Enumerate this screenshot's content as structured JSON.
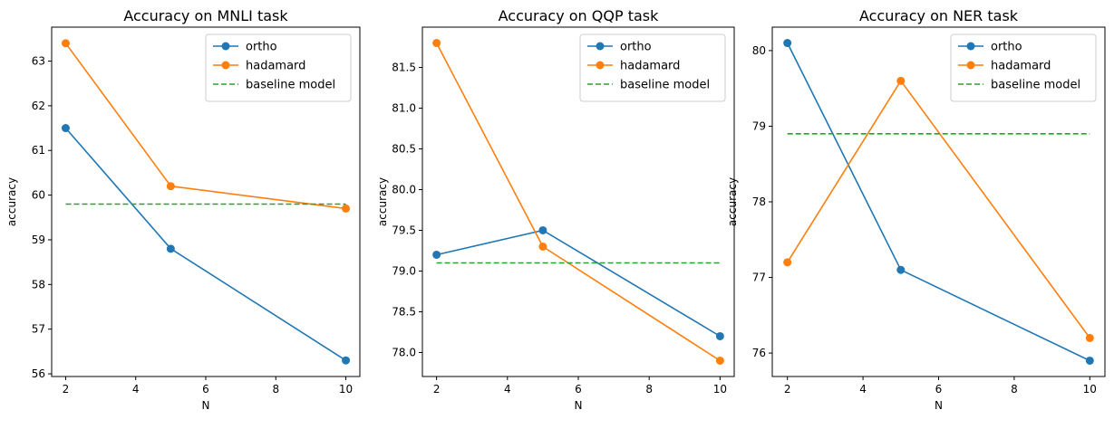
{
  "chart_data": [
    {
      "type": "line",
      "title": "Accuracy on MNLI task",
      "xlabel": "N",
      "ylabel": "accuracy",
      "x": [
        2,
        5,
        10
      ],
      "xticks": [
        2,
        4,
        6,
        8,
        10
      ],
      "yticks": [
        56,
        57,
        58,
        59,
        60,
        61,
        62,
        63
      ],
      "xlim": [
        1.6,
        10.4
      ],
      "ylim": [
        55.94,
        63.76
      ],
      "series": [
        {
          "name": "ortho",
          "values": [
            61.5,
            58.8,
            56.3
          ],
          "color": "#1f77b4",
          "style": "solid",
          "marker": "circle"
        },
        {
          "name": "hadamard",
          "values": [
            63.4,
            60.2,
            59.7
          ],
          "color": "#ff7f0e",
          "style": "solid",
          "marker": "circle"
        },
        {
          "name": "baseline model",
          "values": [
            59.8,
            59.8,
            59.8
          ],
          "color": "#2ca02c",
          "style": "dashed",
          "marker": "none"
        }
      ],
      "legend": "top-right",
      "grid": false
    },
    {
      "type": "line",
      "title": "Accuracy on QQP task",
      "xlabel": "N",
      "ylabel": "accuracy",
      "x": [
        2,
        5,
        10
      ],
      "xticks": [
        2,
        4,
        6,
        8,
        10
      ],
      "yticks": [
        "78.0",
        "78.5",
        "79.0",
        "79.5",
        "80.0",
        "80.5",
        "81.0",
        "81.5"
      ],
      "xlim": [
        1.6,
        10.4
      ],
      "ylim": [
        77.705,
        81.995
      ],
      "series": [
        {
          "name": "ortho",
          "values": [
            79.2,
            79.5,
            78.2
          ],
          "color": "#1f77b4",
          "style": "solid",
          "marker": "circle"
        },
        {
          "name": "hadamard",
          "values": [
            81.8,
            79.3,
            77.9
          ],
          "color": "#ff7f0e",
          "style": "solid",
          "marker": "circle"
        },
        {
          "name": "baseline model",
          "values": [
            79.1,
            79.1,
            79.1
          ],
          "color": "#2ca02c",
          "style": "dashed",
          "marker": "none"
        }
      ],
      "legend": "top-right",
      "grid": false
    },
    {
      "type": "line",
      "title": "Accuracy on NER task",
      "xlabel": "N",
      "ylabel": "accuracy",
      "x": [
        2,
        5,
        10
      ],
      "xticks": [
        2,
        4,
        6,
        8,
        10
      ],
      "yticks": [
        76,
        77,
        78,
        79,
        80
      ],
      "xlim": [
        1.6,
        10.4
      ],
      "ylim": [
        75.69,
        80.31
      ],
      "series": [
        {
          "name": "ortho",
          "values": [
            80.1,
            77.1,
            75.9
          ],
          "color": "#1f77b4",
          "style": "solid",
          "marker": "circle"
        },
        {
          "name": "hadamard",
          "values": [
            77.2,
            79.6,
            76.2
          ],
          "color": "#ff7f0e",
          "style": "solid",
          "marker": "circle"
        },
        {
          "name": "baseline model",
          "values": [
            78.9,
            78.9,
            78.9
          ],
          "color": "#2ca02c",
          "style": "dashed",
          "marker": "none"
        }
      ],
      "legend": "top-right",
      "grid": false
    }
  ]
}
